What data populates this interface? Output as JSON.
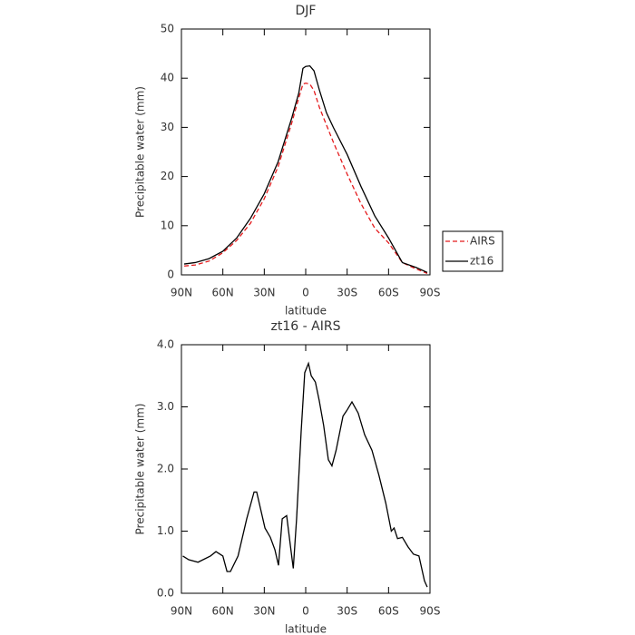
{
  "chart_data": [
    {
      "type": "line",
      "title": "DJF",
      "x_label": "latitude",
      "y_label": "Precipitable water (mm)",
      "x": [
        88,
        80,
        70,
        60,
        50,
        40,
        30,
        20,
        10,
        5,
        2,
        0,
        -3,
        -6,
        -10,
        -15,
        -20,
        -30,
        -40,
        -50,
        -60,
        -70,
        -80,
        -88
      ],
      "series": [
        {
          "name": "AIRS",
          "color": "#e41a1c",
          "dash": "5,3",
          "values": [
            1.8,
            2.0,
            2.8,
            4.5,
            7,
            10.5,
            15.5,
            22,
            31,
            36,
            38.8,
            39,
            38.8,
            37.5,
            34,
            30.5,
            27,
            20.5,
            14.5,
            9.5,
            6.5,
            2.5,
            1.2,
            0.3
          ]
        },
        {
          "name": "zt16",
          "color": "#000000",
          "values": [
            2.2,
            2.5,
            3.3,
            4.8,
            7.5,
            11.5,
            16.5,
            23,
            32,
            37,
            42,
            42.4,
            42.5,
            41.5,
            37.5,
            33,
            30,
            24.5,
            18,
            12,
            7.5,
            2.5,
            1.5,
            0.5
          ]
        }
      ],
      "xlim": [
        90,
        -90
      ],
      "xticks": [
        {
          "value": 90,
          "label": "90N"
        },
        {
          "value": 60,
          "label": "60N"
        },
        {
          "value": 30,
          "label": "30N"
        },
        0,
        {
          "value": -30,
          "label": "30S"
        },
        {
          "value": -60,
          "label": "60S"
        },
        {
          "value": -90,
          "label": "90S"
        }
      ],
      "ylim": [
        0,
        50
      ],
      "yticks": [
        0,
        10,
        20,
        30,
        40,
        50
      ],
      "legend": "right"
    },
    {
      "type": "line",
      "title": "zt16 - AIRS",
      "x_label": "latitude",
      "y_label": "Precipitable water (mm)",
      "x": [
        89,
        84.7,
        78,
        69,
        65,
        60,
        57,
        54.5,
        49,
        42.7,
        37.4,
        35.5,
        29.5,
        25.6,
        22.3,
        19.7,
        17,
        13.8,
        11,
        9,
        6.6,
        3.3,
        0.7,
        -2,
        -4,
        -7,
        -9.8,
        -13,
        -16.4,
        -19,
        -22,
        -27,
        -30,
        -33.5,
        -38,
        -42.7,
        -48,
        -53,
        -58,
        -62,
        -64,
        -66.5,
        -70,
        -74,
        -78,
        -82,
        -86,
        -88
      ],
      "color": "#000000",
      "values": [
        0.6,
        0.54,
        0.5,
        0.6,
        0.67,
        0.6,
        0.35,
        0.35,
        0.6,
        1.2,
        1.63,
        1.63,
        1.05,
        0.9,
        0.7,
        0.45,
        1.2,
        1.25,
        0.75,
        0.4,
        1.2,
        2.6,
        3.55,
        3.7,
        3.5,
        3.4,
        3.1,
        2.7,
        2.15,
        2.05,
        2.3,
        2.85,
        2.95,
        3.08,
        2.9,
        2.55,
        2.3,
        1.9,
        1.45,
        1.0,
        1.05,
        0.88,
        0.9,
        0.75,
        0.63,
        0.6,
        0.2,
        0.1
      ],
      "xlim": [
        90,
        -90
      ],
      "xticks": [
        {
          "value": 90,
          "label": "90N"
        },
        {
          "value": 60,
          "label": "60N"
        },
        {
          "value": 30,
          "label": "30N"
        },
        0,
        {
          "value": -30,
          "label": "30S"
        },
        {
          "value": -60,
          "label": "60S"
        },
        {
          "value": -90,
          "label": "90S"
        }
      ],
      "ylim": [
        0,
        4
      ],
      "yticks": [
        {
          "value": 0,
          "label": "0.0"
        },
        {
          "value": 1,
          "label": "1.0"
        },
        {
          "value": 2,
          "label": "2.0"
        },
        {
          "value": 3,
          "label": "3.0"
        },
        {
          "value": 4,
          "label": "4.0"
        }
      ]
    }
  ]
}
